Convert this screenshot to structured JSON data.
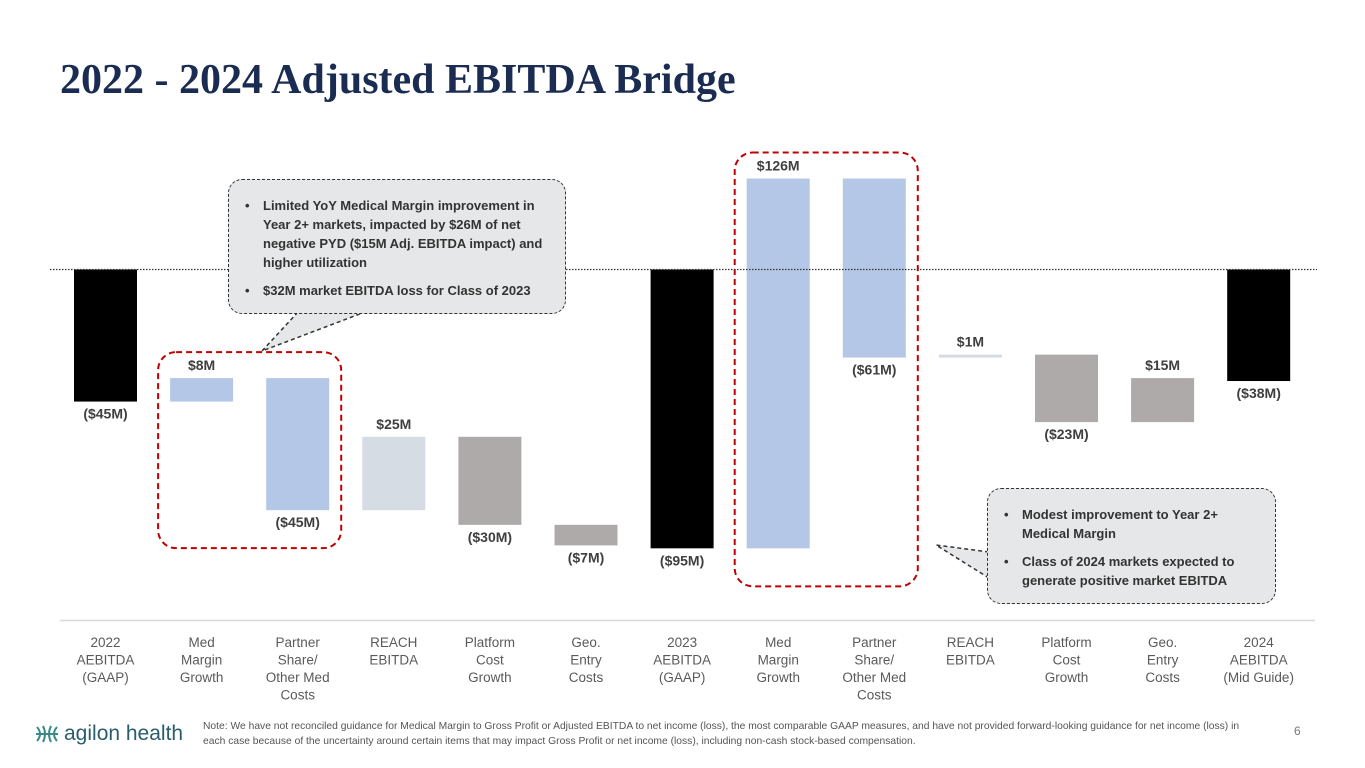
{
  "title": "2022 - 2024 Adjusted EBITDA Bridge",
  "chart_data": {
    "type": "bar",
    "subtype": "waterfall",
    "categories": [
      "2022 AEBITDA (GAAP)",
      "Med Margin Growth",
      "Partner Share/ Other Med Costs",
      "REACH EBITDA",
      "Platform Cost Growth",
      "Geo. Entry Costs",
      "2023 AEBITDA (GAAP)",
      "Med Margin Growth",
      "Partner Share/ Other Med Costs",
      "REACH EBITDA",
      "Platform Cost Growth",
      "Geo. Entry Costs",
      "2024 AEBITDA (Mid Guide)"
    ],
    "category_lines": [
      [
        "2022",
        "AEBITDA",
        "(GAAP)"
      ],
      [
        "Med",
        "Margin",
        "Growth"
      ],
      [
        "Partner",
        "Share/",
        "Other Med",
        "Costs"
      ],
      [
        "REACH",
        "EBITDA"
      ],
      [
        "Platform",
        "Cost",
        "Growth"
      ],
      [
        "Geo.",
        "Entry",
        "Costs"
      ],
      [
        "2023",
        "AEBITDA",
        "(GAAP)"
      ],
      [
        "Med",
        "Margin",
        "Growth"
      ],
      [
        "Partner",
        "Share/",
        "Other Med",
        "Costs"
      ],
      [
        "REACH",
        "EBITDA"
      ],
      [
        "Platform",
        "Cost",
        "Growth"
      ],
      [
        "Geo.",
        "Entry",
        "Costs"
      ],
      [
        "2024",
        "AEBITDA",
        "(Mid Guide)"
      ]
    ],
    "values": [
      -45,
      8,
      -45,
      25,
      -30,
      -7,
      -95,
      126,
      -61,
      1,
      -23,
      15,
      -38
    ],
    "kinds": [
      "total",
      "delta",
      "delta",
      "delta",
      "delta",
      "delta",
      "total",
      "delta",
      "delta",
      "delta",
      "delta",
      "delta",
      "total"
    ],
    "data_labels": [
      "($45M)",
      "$8M",
      "($45M)",
      "$25M",
      "($30M)",
      "($7M)",
      "($95M)",
      "$126M",
      "($61M)",
      "$1M",
      "($23M)",
      "$15M",
      "($38M)"
    ],
    "bar_colors": [
      "#000000",
      "#b4c7e7",
      "#b4c7e7",
      "#d6dce4",
      "#aeaaaa",
      "#aeaaaa",
      "#000000",
      "#b4c7e7",
      "#b4c7e7",
      "#d6dce4",
      "#aeaaaa",
      "#aeaaaa",
      "#000000"
    ],
    "ylim": [
      -95,
      31
    ],
    "zero_line": "dotted",
    "highlight_groups": [
      [
        1,
        2
      ],
      [
        7,
        8
      ]
    ],
    "highlight_color": "#c00000"
  },
  "callouts": {
    "left": [
      "Limited YoY Medical Margin improvement in Year 2+ markets, impacted by $26M of net negative PYD ($15M Adj. EBITDA impact) and higher utilization",
      "$32M market EBITDA loss for Class of 2023"
    ],
    "right": [
      "Modest improvement to Year 2+ Medical Margin",
      "Class of 2024 markets expected to generate positive market EBITDA"
    ]
  },
  "footer": {
    "logo_text": "agilon health",
    "logo_color": "#2a5d6c",
    "note": "Note: We have not reconciled guidance for Medical Margin to Gross Profit or Adjusted EBITDA to net income (loss), the most comparable GAAP measures, and have not provided forward-looking guidance for net income (loss) in each case because of the uncertainty around certain items that may impact Gross Profit or net income (loss), including non-cash stock-based compensation.",
    "page_number": "6"
  }
}
